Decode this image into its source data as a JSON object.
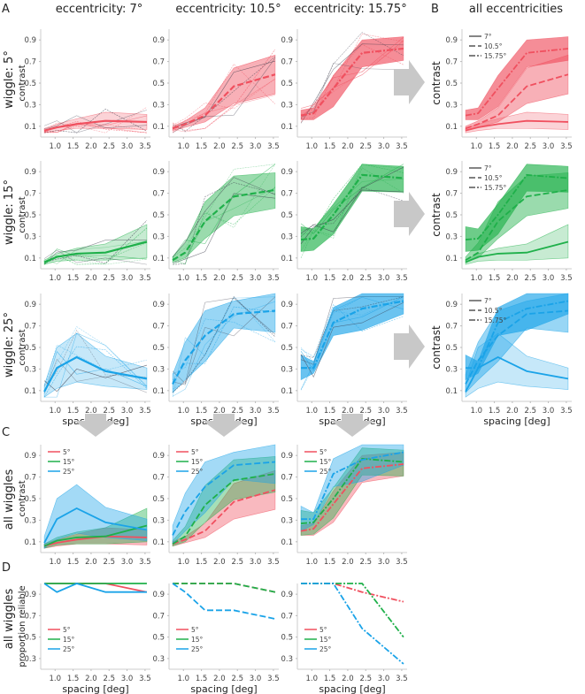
{
  "figure": {
    "panel_labels": [
      "A",
      "B",
      "C",
      "D"
    ],
    "column_titles": [
      "eccentricity: 7°",
      "eccentricity: 10.5°",
      "eccentricity: 15.75°",
      "all eccentricities"
    ],
    "row_titles": [
      "wiggle: 5°",
      "wiggle: 15°",
      "wiggle: 25°",
      "all wiggles",
      "all wiggles"
    ],
    "ylabel_contrast": "contrast",
    "ylabel_reliable": "proportion reliable",
    "xlabel": "spacing [deg]",
    "ecc_legend": [
      "7°",
      "10.5°",
      "15.75°"
    ],
    "wiggle_legend": [
      "5°",
      "15°",
      "25°"
    ],
    "colors": {
      "w5": "#f0505f",
      "w15": "#1fb04a",
      "w25": "#1aa3e8",
      "arrow": "#c8c8c8"
    }
  },
  "chart_data": {
    "type": "line",
    "x": [
      0.7,
      1.05,
      1.6,
      2.4,
      3.55
    ],
    "xticks": [
      "1.0",
      "1.5",
      "2.0",
      "2.5",
      "3.0",
      "3.5"
    ],
    "yticks_contrast": [
      "0.1",
      "0.3",
      "0.5",
      "0.7",
      "0.9"
    ],
    "yticks_reliable": [
      "0.3",
      "0.5",
      "0.7",
      "0.9"
    ],
    "ylim_contrast": [
      0,
      1.0
    ],
    "ylim_reliable": [
      0.2,
      1.0
    ],
    "xlim": [
      0.6,
      3.65
    ],
    "contrast": {
      "w5": {
        "e7": {
          "mean": [
            0.06,
            0.09,
            0.12,
            0.15,
            0.14
          ],
          "lo": [
            0.04,
            0.06,
            0.08,
            0.08,
            0.07
          ],
          "hi": [
            0.08,
            0.12,
            0.17,
            0.23,
            0.21
          ]
        },
        "e10": {
          "mean": [
            0.08,
            0.12,
            0.2,
            0.47,
            0.58
          ],
          "lo": [
            0.06,
            0.09,
            0.14,
            0.31,
            0.4
          ],
          "hi": [
            0.1,
            0.15,
            0.27,
            0.64,
            0.76
          ]
        },
        "e15": {
          "mean": [
            0.2,
            0.22,
            0.45,
            0.78,
            0.82
          ],
          "lo": [
            0.16,
            0.16,
            0.28,
            0.65,
            0.71
          ],
          "hi": [
            0.25,
            0.27,
            0.57,
            0.9,
            0.93
          ]
        }
      },
      "w15": {
        "e7": {
          "mean": [
            0.06,
            0.11,
            0.14,
            0.15,
            0.25
          ],
          "lo": [
            0.04,
            0.07,
            0.08,
            0.08,
            0.1
          ],
          "hi": [
            0.08,
            0.14,
            0.19,
            0.23,
            0.41
          ]
        },
        "e10": {
          "mean": [
            0.08,
            0.15,
            0.44,
            0.67,
            0.73
          ],
          "lo": [
            0.06,
            0.1,
            0.28,
            0.49,
            0.56
          ],
          "hi": [
            0.11,
            0.24,
            0.62,
            0.86,
            0.89
          ]
        },
        "e15": {
          "mean": [
            0.27,
            0.28,
            0.5,
            0.87,
            0.84
          ],
          "lo": [
            0.16,
            0.17,
            0.32,
            0.72,
            0.71
          ],
          "hi": [
            0.39,
            0.37,
            0.6,
            0.97,
            0.95
          ]
        }
      },
      "w25": {
        "e7": {
          "mean": [
            0.09,
            0.31,
            0.41,
            0.28,
            0.21
          ],
          "lo": [
            0.04,
            0.12,
            0.18,
            0.14,
            0.11
          ],
          "hi": [
            0.15,
            0.5,
            0.63,
            0.42,
            0.31
          ]
        },
        "e10": {
          "mean": [
            0.16,
            0.38,
            0.61,
            0.81,
            0.84
          ],
          "lo": [
            0.08,
            0.2,
            0.37,
            0.68,
            0.64
          ],
          "hi": [
            0.25,
            0.55,
            0.84,
            0.93,
            1.0
          ]
        },
        "e15": {
          "mean": [
            0.31,
            0.31,
            0.73,
            0.86,
            0.93
          ],
          "lo": [
            0.2,
            0.26,
            0.61,
            0.66,
            0.81
          ],
          "hi": [
            0.43,
            0.37,
            0.87,
            1.0,
            1.0
          ]
        }
      }
    },
    "reliable": {
      "e7": {
        "w5": [
          1.0,
          1.0,
          1.0,
          1.0,
          0.92
        ],
        "w15": [
          1.0,
          1.0,
          1.0,
          1.0,
          1.0
        ],
        "w25": [
          1.0,
          0.92,
          1.0,
          0.92,
          0.92
        ]
      },
      "e10": {
        "w5": [
          1.0,
          1.0,
          1.0,
          1.0,
          0.92
        ],
        "w15": [
          1.0,
          1.0,
          1.0,
          1.0,
          0.92
        ],
        "w25": [
          1.0,
          0.92,
          0.75,
          0.75,
          0.67
        ]
      },
      "e15": {
        "w5": [
          1.0,
          1.0,
          1.0,
          0.92,
          0.83
        ],
        "w15": [
          1.0,
          1.0,
          1.0,
          1.0,
          0.5
        ],
        "w25": [
          1.0,
          1.0,
          1.0,
          0.58,
          0.25
        ]
      }
    }
  }
}
